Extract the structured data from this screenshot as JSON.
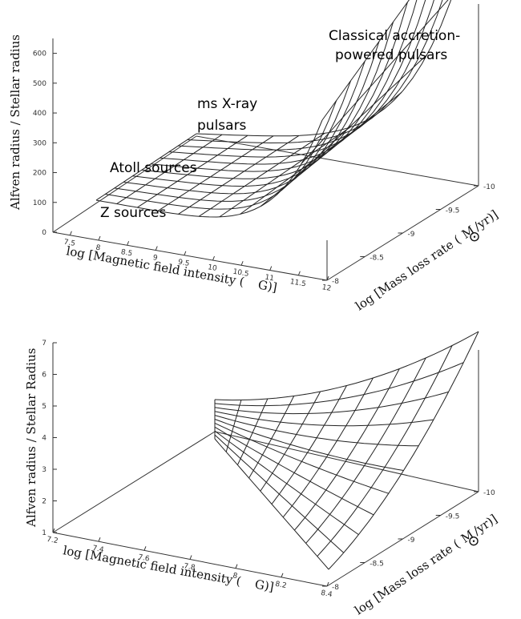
{
  "chart_data": [
    {
      "type": "surface",
      "zlabel": "Alfven radius / Stellar radius",
      "xlabel_pre": "log [Magnetic field intensity (",
      "xlabel_post": "G)]",
      "ylabel_pre": "log [Mass loss rate (",
      "ylabel_unit": "M",
      "ylabel_post": "/yr)]",
      "x_ticks": [
        "7.5",
        "8",
        "8.5",
        "9",
        "9.5",
        "10",
        "10.5",
        "11",
        "11.5",
        "12"
      ],
      "y_ticks": [
        "-8",
        "-8.5",
        "-9",
        "-9.5",
        "-10"
      ],
      "z_ticks": [
        "0",
        "100",
        "200",
        "300",
        "400",
        "500",
        "600"
      ],
      "xlim": [
        7.2,
        12
      ],
      "ylim": [
        -8,
        -10
      ],
      "zlim": [
        0,
        650
      ],
      "annotations": [
        {
          "text": "Classical accretion-"
        },
        {
          "text": "powered pulsars"
        },
        {
          "text": "ms X-ray"
        },
        {
          "text": "pulsars"
        },
        {
          "text": "Atoll sources"
        },
        {
          "text": "Z sources"
        }
      ]
    },
    {
      "type": "surface",
      "zlabel": "Alfven radius / Stellar Radius",
      "xlabel_pre": "log [Magnetic field intensity (",
      "xlabel_post": "G)]",
      "ylabel_pre": "log [Mass loss rate (",
      "ylabel_unit": "M",
      "ylabel_post": "/yr)]",
      "x_ticks": [
        "7.2",
        "7.4",
        "7.6",
        "7.8",
        "8",
        "8.2",
        "8.4"
      ],
      "y_ticks": [
        "-8",
        "-8.5",
        "-9",
        "-9.5",
        "-10"
      ],
      "z_ticks": [
        "1",
        "2",
        "3",
        "4",
        "5",
        "6",
        "7"
      ],
      "xlim": [
        7.2,
        8.4
      ],
      "ylim": [
        -8,
        -10
      ],
      "zlim": [
        1,
        7
      ]
    }
  ]
}
